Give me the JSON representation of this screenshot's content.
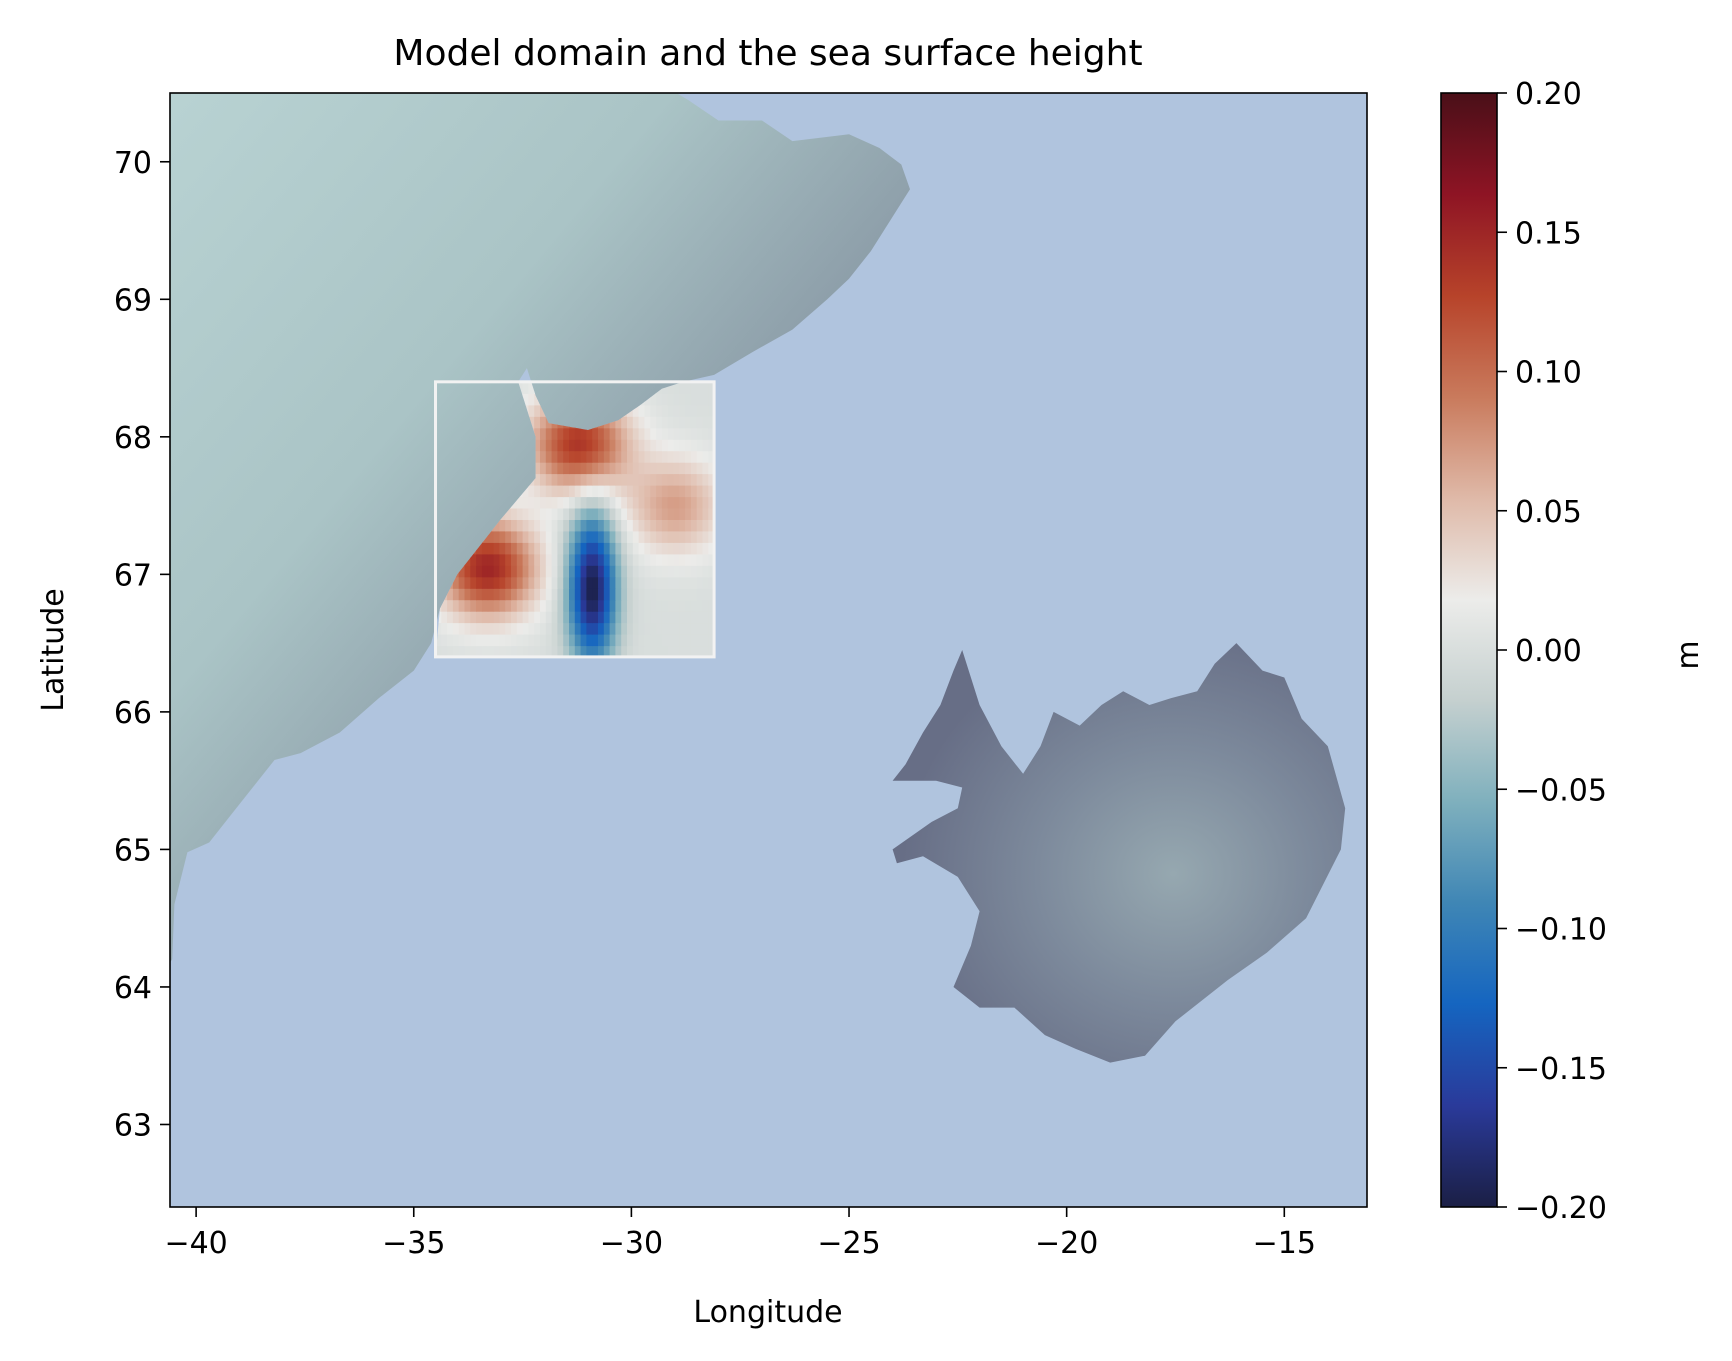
{
  "chart_data": {
    "type": "heatmap",
    "title": "Model domain and the sea surface height",
    "xlabel": "Longitude",
    "ylabel": "Latitude",
    "xlim": [
      -40.6,
      -13.1
    ],
    "ylim": [
      62.4,
      70.5
    ],
    "x_ticks": [
      -40,
      -35,
      -30,
      -25,
      -20,
      -15
    ],
    "x_tick_labels": [
      "−40",
      "−35",
      "−30",
      "−25",
      "−20",
      "−15"
    ],
    "y_ticks": [
      63,
      64,
      65,
      66,
      67,
      68,
      69,
      70
    ],
    "y_tick_labels": [
      "63",
      "64",
      "65",
      "66",
      "67",
      "68",
      "69",
      "70"
    ],
    "grid": false,
    "background": {
      "sea_color": "#b0c4de",
      "land_colors": [
        "#687088",
        "#8a9aa6",
        "#b9d3d3"
      ],
      "landmasses": [
        "Greenland (east coast)",
        "Iceland"
      ]
    },
    "ssh_field": {
      "lon_range": [
        -34.5,
        -28.1
      ],
      "lat_range": [
        66.4,
        68.4
      ],
      "features": [
        {
          "kind": "low",
          "lon": -30.9,
          "lat": 66.9,
          "value": -0.2
        },
        {
          "kind": "high",
          "lon": -31.2,
          "lat": 67.95,
          "value": 0.14
        },
        {
          "kind": "high",
          "lon": -33.3,
          "lat": 67.05,
          "value": 0.15
        },
        {
          "kind": "high",
          "lon": -29.0,
          "lat": 67.5,
          "value": 0.07
        }
      ]
    },
    "colorbar": {
      "label": "m",
      "vmin": -0.2,
      "vmax": 0.2,
      "ticks": [
        -0.2,
        -0.15,
        -0.1,
        -0.05,
        0.0,
        0.05,
        0.1,
        0.15,
        0.2
      ],
      "tick_labels": [
        "−0.20",
        "−0.15",
        "−0.10",
        "−0.05",
        "0.00",
        "0.05",
        "0.10",
        "0.15",
        "0.20"
      ],
      "colors": [
        "#1b1f45",
        "#2a3a9a",
        "#1565c0",
        "#3f86b5",
        "#7fb0bd",
        "#c5d0cf",
        "#ececea",
        "#dfb9a8",
        "#c97a5c",
        "#b7432a",
        "#8e1424",
        "#4a0f18"
      ]
    }
  }
}
